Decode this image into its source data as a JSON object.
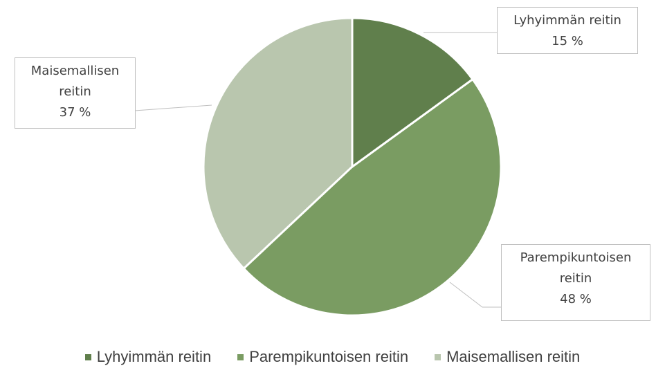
{
  "chart_data": {
    "type": "pie",
    "categories": [
      "Lyhyimmän reitin",
      "Parempikuntoisen reitin",
      "Maisemallisen reitin"
    ],
    "values": [
      15,
      48,
      37
    ],
    "value_labels": [
      "15 %",
      "48 %",
      "37 %"
    ],
    "colors": [
      "#607f4c",
      "#7a9c62",
      "#b9c6ae"
    ],
    "legend": "bottom"
  }
}
